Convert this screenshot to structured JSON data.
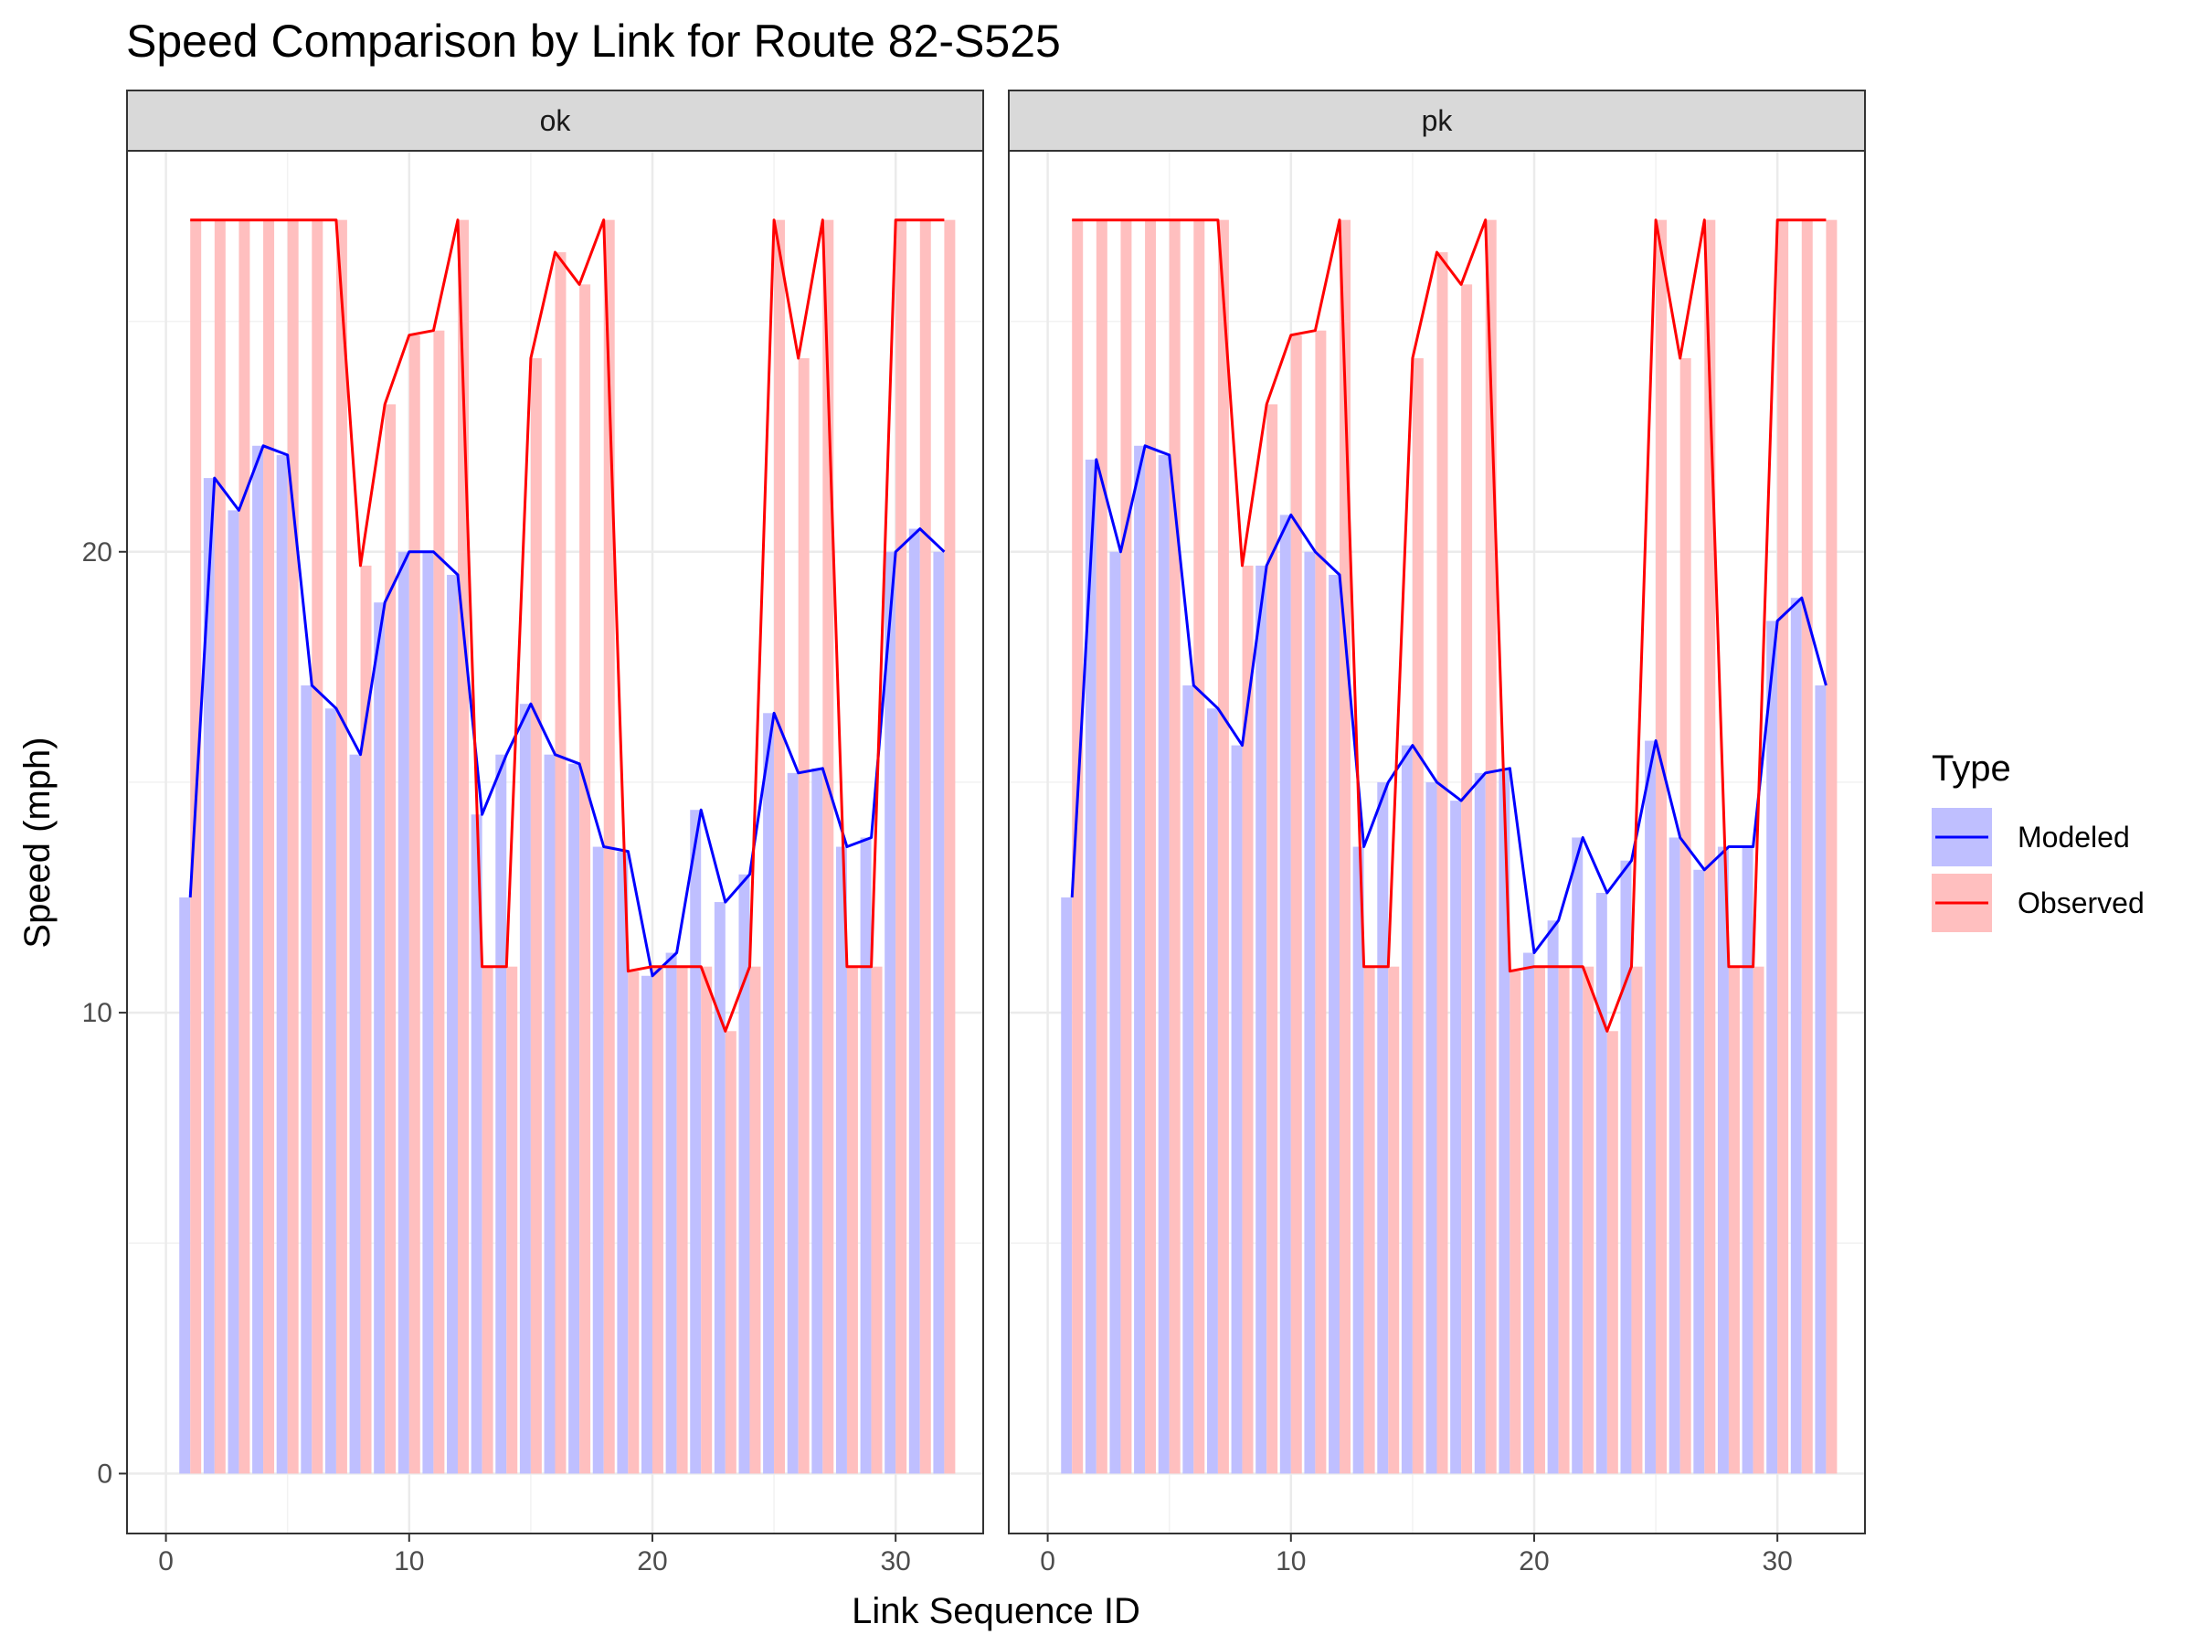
{
  "chart_data": {
    "type": "bar",
    "title": "Speed Comparison by Link for Route 82-S525",
    "xlabel": "Link Sequence ID",
    "ylabel": "Speed (mph)",
    "xlim": [
      -1.6,
      33.6
    ],
    "ylim": [
      -1.3,
      28.7
    ],
    "x_ticks": [
      0,
      10,
      20,
      30
    ],
    "y_ticks": [
      0,
      10,
      20
    ],
    "legend": {
      "title": "Type",
      "position": "right",
      "entries": [
        {
          "name": "Modeled",
          "color": "#0000ff",
          "fill": "#bfbfff"
        },
        {
          "name": "Observed",
          "color": "#ff0000",
          "fill": "#ffbfbf"
        }
      ]
    },
    "x": [
      1,
      2,
      3,
      4,
      5,
      6,
      7,
      8,
      9,
      10,
      11,
      12,
      13,
      14,
      15,
      16,
      17,
      18,
      19,
      20,
      21,
      22,
      23,
      24,
      25,
      26,
      27,
      28,
      29,
      30,
      31,
      32
    ],
    "facets": [
      {
        "label": "ok",
        "series": [
          {
            "name": "Modeled",
            "values": [
              12.5,
              21.6,
              20.9,
              22.3,
              22.1,
              17.1,
              16.6,
              15.6,
              18.9,
              20.0,
              20.0,
              19.5,
              14.3,
              15.6,
              16.7,
              15.6,
              15.4,
              13.6,
              13.5,
              10.8,
              11.3,
              14.4,
              12.4,
              13.0,
              16.5,
              15.2,
              15.3,
              13.6,
              13.8,
              20.0,
              20.5,
              20.0
            ]
          },
          {
            "name": "Observed",
            "values": [
              27.2,
              27.2,
              27.2,
              27.2,
              27.2,
              27.2,
              27.2,
              19.7,
              23.2,
              24.7,
              24.8,
              27.2,
              11.0,
              11.0,
              24.2,
              26.5,
              25.8,
              27.2,
              10.9,
              11.0,
              11.0,
              11.0,
              9.6,
              11.0,
              27.2,
              24.2,
              27.2,
              11.0,
              11.0,
              27.2,
              27.2,
              27.2
            ]
          }
        ]
      },
      {
        "label": "pk",
        "series": [
          {
            "name": "Modeled",
            "values": [
              12.5,
              22.0,
              20.0,
              22.3,
              22.1,
              17.1,
              16.6,
              15.8,
              19.7,
              20.8,
              20.0,
              19.5,
              13.6,
              15.0,
              15.8,
              15.0,
              14.6,
              15.2,
              15.3,
              11.3,
              12.0,
              13.8,
              12.6,
              13.3,
              15.9,
              13.8,
              13.1,
              13.6,
              13.6,
              18.5,
              19.0,
              17.1
            ]
          },
          {
            "name": "Observed",
            "values": [
              27.2,
              27.2,
              27.2,
              27.2,
              27.2,
              27.2,
              27.2,
              19.7,
              23.2,
              24.7,
              24.8,
              27.2,
              11.0,
              11.0,
              24.2,
              26.5,
              25.8,
              27.2,
              10.9,
              11.0,
              11.0,
              11.0,
              9.6,
              11.0,
              27.2,
              24.2,
              27.2,
              11.0,
              11.0,
              27.2,
              27.2,
              27.2
            ]
          }
        ]
      }
    ]
  }
}
